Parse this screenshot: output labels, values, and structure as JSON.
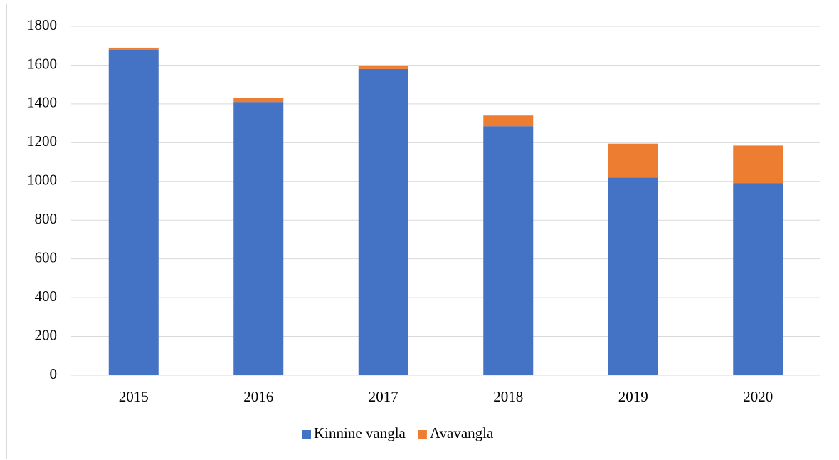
{
  "chart_data": {
    "type": "stacked_bar",
    "categories": [
      "2015",
      "2016",
      "2017",
      "2018",
      "2019",
      "2020"
    ],
    "series": [
      {
        "name": "Kinnine vangla",
        "color": "#4472c4",
        "values": [
          1680,
          1410,
          1580,
          1285,
          1020,
          990
        ]
      },
      {
        "name": "Avavangla",
        "color": "#ed7d31",
        "values": [
          10,
          20,
          15,
          55,
          175,
          195
        ]
      }
    ],
    "ylim": [
      0,
      1800
    ],
    "yticks": [
      0,
      200,
      400,
      600,
      800,
      1000,
      1200,
      1400,
      1600,
      1800
    ],
    "grid": true,
    "legend": "bottom"
  }
}
